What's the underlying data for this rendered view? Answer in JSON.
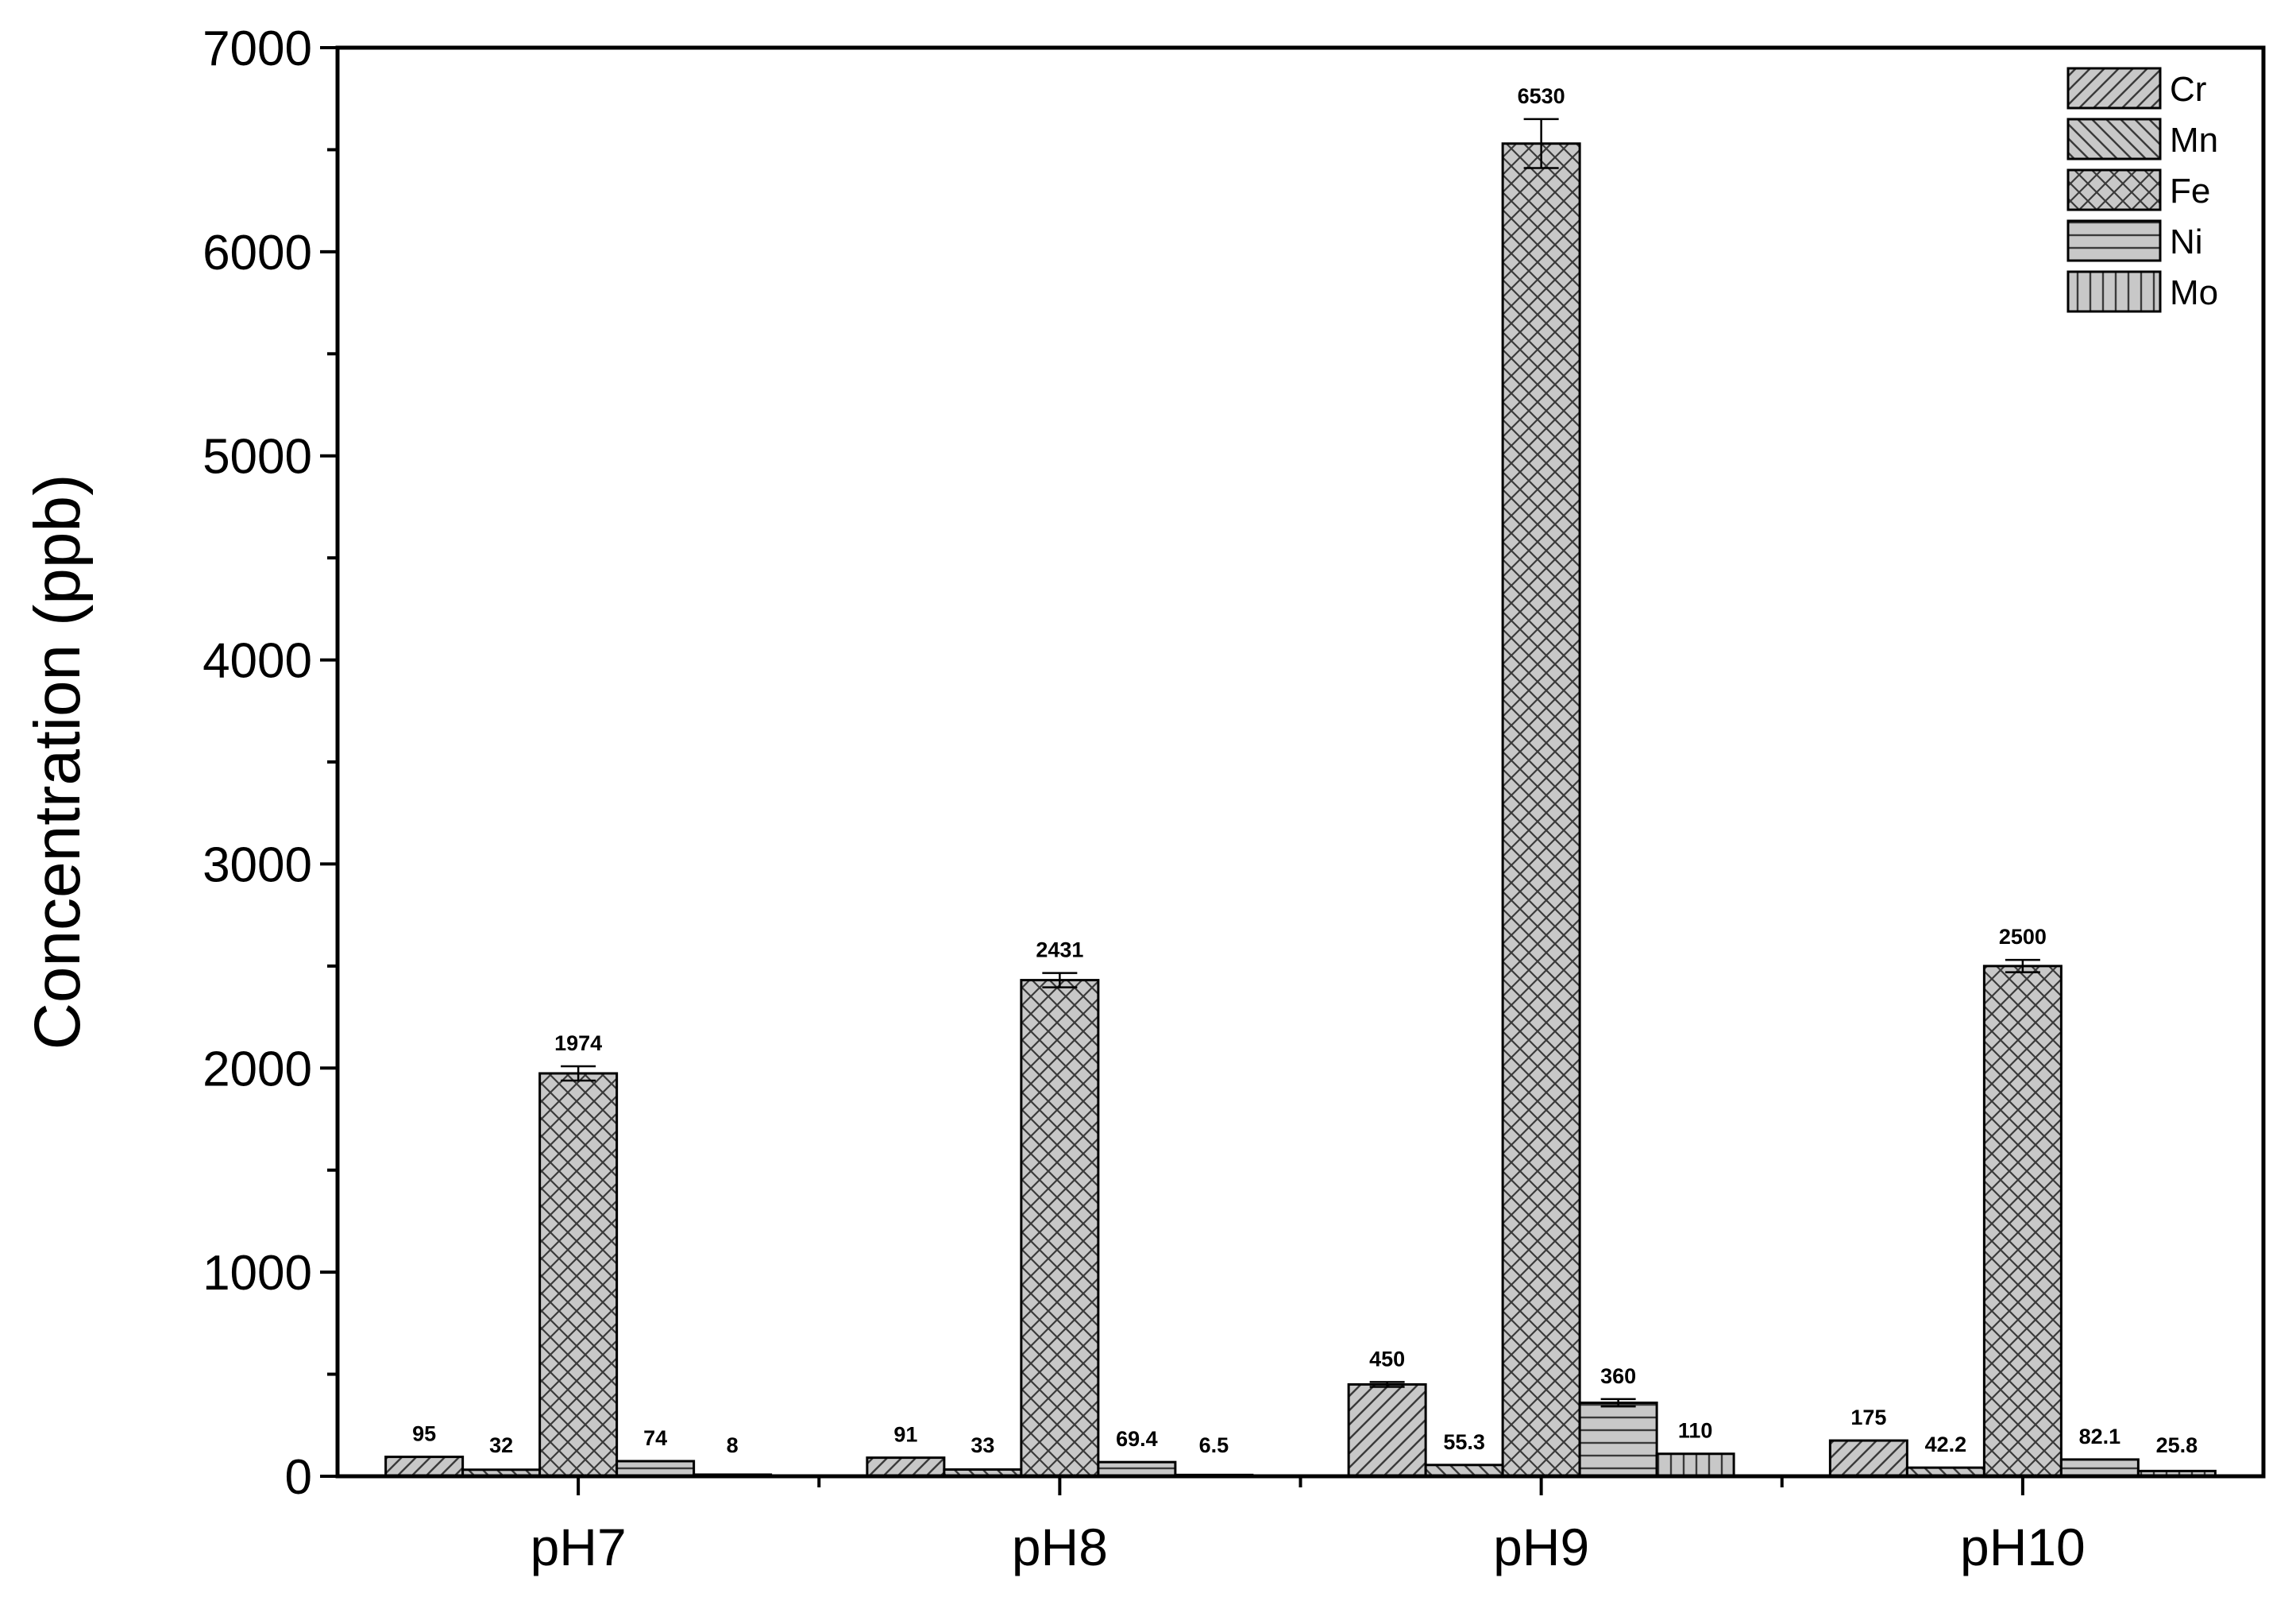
{
  "chart_data": {
    "type": "bar",
    "title": "",
    "xlabel": "",
    "ylabel": "Concentration (ppb)",
    "categories": [
      "pH7",
      "pH8",
      "pH9",
      "pH10"
    ],
    "ylim": [
      0,
      7000
    ],
    "yticks": [
      0,
      1000,
      2000,
      3000,
      4000,
      5000,
      6000,
      7000
    ],
    "grid": false,
    "legend_position": "top-right",
    "series": [
      {
        "name": "Cr",
        "pattern": "diagonal-forward",
        "values": [
          95,
          91,
          450,
          175
        ],
        "labels": [
          "95",
          "91",
          "450",
          "175"
        ],
        "errors": [
          null,
          null,
          12,
          null
        ]
      },
      {
        "name": "Mn",
        "pattern": "diagonal-back",
        "values": [
          32,
          33,
          55.3,
          42.2
        ],
        "labels": [
          "32",
          "33",
          "55.3",
          "42.2"
        ],
        "errors": [
          null,
          null,
          null,
          null
        ]
      },
      {
        "name": "Fe",
        "pattern": "crosshatch",
        "values": [
          1974,
          2431,
          6530,
          2500
        ],
        "labels": [
          "1974",
          "2431",
          "6530",
          "2500"
        ],
        "errors": [
          35,
          35,
          120,
          30
        ]
      },
      {
        "name": "Ni",
        "pattern": "horizontal",
        "values": [
          74,
          69.4,
          360,
          82.1
        ],
        "labels": [
          "74",
          "69.4",
          "360",
          "82.1"
        ],
        "errors": [
          null,
          null,
          18,
          null
        ]
      },
      {
        "name": "Mo",
        "pattern": "vertical",
        "values": [
          8,
          6.5,
          110,
          25.8
        ],
        "labels": [
          "8",
          "6.5",
          "110",
          "25.8"
        ],
        "errors": [
          null,
          null,
          null,
          null
        ]
      }
    ],
    "colors": {
      "bar_fill": "#c8c8c8",
      "hatch": "#3a3a3a",
      "axis": "#000000"
    }
  }
}
